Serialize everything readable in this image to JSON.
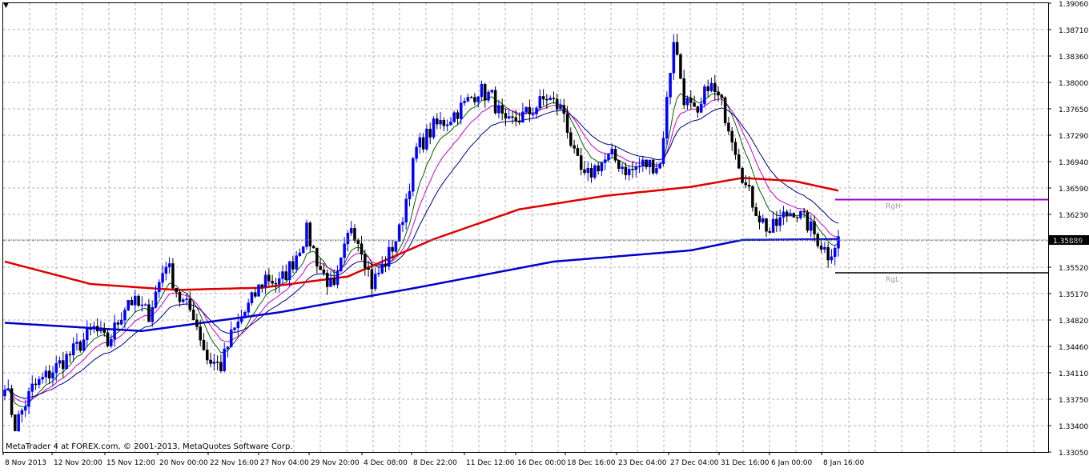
{
  "chart_data": {
    "type": "candlestick",
    "y_ticks": [
      "1.39060",
      "1.38710",
      "1.38360",
      "1.38000",
      "1.37650",
      "1.37290",
      "1.36940",
      "1.36590",
      "1.36230",
      "1.35880",
      "1.35520",
      "1.35170",
      "1.34820",
      "1.34460",
      "1.34110",
      "1.33750",
      "1.33400",
      "1.33050"
    ],
    "ylim": [
      1.3305,
      1.3906
    ],
    "x_ticks": [
      "8 Nov 2013",
      "12 Nov 20:00",
      "15 Nov 12:00",
      "20 Nov 00:00",
      "22 Nov 16:00",
      "27 Nov 04:00",
      "29 Nov 20:00",
      "4 Dec 08:00",
      "8 Dec 22:00",
      "11 Dec 12:00",
      "16 Dec 00:00",
      "18 Dec 16:00",
      "23 Dec 04:00",
      "27 Dec 04:00",
      "31 Dec 16:00",
      "6 Jan 00:00",
      "8 Jan 16:00"
    ],
    "current_price": "1.35889",
    "rgh": {
      "label": "RgH",
      "value": 1.3643
    },
    "rgl": {
      "label": "RgL",
      "value": 1.3545
    },
    "candle_anchors": [
      [
        0,
        1.34
      ],
      [
        3,
        1.334
      ],
      [
        8,
        1.339
      ],
      [
        13,
        1.341
      ],
      [
        20,
        1.344
      ],
      [
        26,
        1.347
      ],
      [
        30,
        1.345
      ],
      [
        36,
        1.351
      ],
      [
        42,
        1.349
      ],
      [
        47,
        1.356
      ],
      [
        51,
        1.351
      ],
      [
        55,
        1.349
      ],
      [
        59,
        1.343
      ],
      [
        63,
        1.342
      ],
      [
        66,
        1.346
      ],
      [
        71,
        1.35
      ],
      [
        76,
        1.354
      ],
      [
        80,
        1.353
      ],
      [
        84,
        1.356
      ],
      [
        88,
        1.36
      ],
      [
        92,
        1.355
      ],
      [
        96,
        1.352
      ],
      [
        101,
        1.361
      ],
      [
        104,
        1.358
      ],
      [
        107,
        1.353
      ],
      [
        111,
        1.356
      ],
      [
        115,
        1.36
      ],
      [
        120,
        1.371
      ],
      [
        125,
        1.374
      ],
      [
        129,
        1.375
      ],
      [
        134,
        1.377
      ],
      [
        138,
        1.379
      ],
      [
        142,
        1.378
      ],
      [
        146,
        1.374
      ],
      [
        149,
        1.375
      ],
      [
        153,
        1.376
      ],
      [
        158,
        1.378
      ],
      [
        163,
        1.376
      ],
      [
        166,
        1.37
      ],
      [
        169,
        1.367
      ],
      [
        173,
        1.369
      ],
      [
        177,
        1.37
      ],
      [
        182,
        1.368
      ],
      [
        186,
        1.369
      ],
      [
        191,
        1.369
      ],
      [
        195,
        1.386
      ],
      [
        198,
        1.378
      ],
      [
        202,
        1.375
      ],
      [
        205,
        1.38
      ],
      [
        209,
        1.377
      ],
      [
        212,
        1.373
      ],
      [
        216,
        1.366
      ],
      [
        220,
        1.362
      ],
      [
        223,
        1.36
      ],
      [
        227,
        1.362
      ],
      [
        230,
        1.363
      ],
      [
        234,
        1.361
      ],
      [
        237,
        1.359
      ],
      [
        240,
        1.357
      ],
      [
        243,
        1.359
      ]
    ],
    "sma200_anchors": [
      [
        0,
        1.3478
      ],
      [
        40,
        1.3467
      ],
      [
        80,
        1.3492
      ],
      [
        120,
        1.3525
      ],
      [
        160,
        1.356
      ],
      [
        200,
        1.3575
      ],
      [
        215,
        1.3589
      ],
      [
        243,
        1.359
      ]
    ],
    "ma_red_anchors": [
      [
        0,
        1.356
      ],
      [
        25,
        1.353
      ],
      [
        50,
        1.3522
      ],
      [
        75,
        1.3525
      ],
      [
        100,
        1.354
      ],
      [
        125,
        1.359
      ],
      [
        150,
        1.363
      ],
      [
        175,
        1.3648
      ],
      [
        200,
        1.366
      ],
      [
        215,
        1.3672
      ],
      [
        230,
        1.3668
      ],
      [
        243,
        1.3655
      ]
    ]
  }
}
